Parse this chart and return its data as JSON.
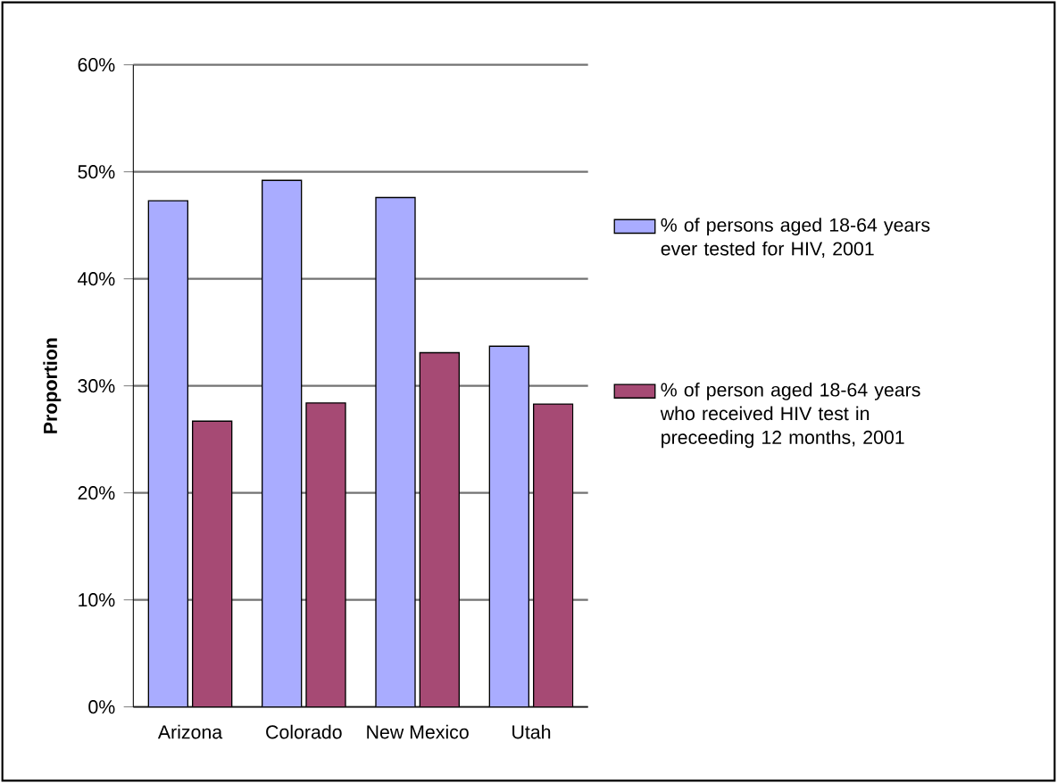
{
  "chart_data": {
    "type": "bar",
    "ylabel": "Proportion",
    "categories": [
      "Arizona",
      "Colorado",
      "New Mexico",
      "Utah"
    ],
    "series": [
      {
        "name": "% of persons aged 18-64 years ever tested for HIV, 2001",
        "color": "#a9acff",
        "values": [
          47.3,
          49.2,
          47.6,
          33.7
        ]
      },
      {
        "name": "% of person aged 18-64 years who received HIV test in preceeding 12 months, 2001",
        "color": "#a64a74",
        "values": [
          26.7,
          28.4,
          33.1,
          28.3
        ]
      }
    ],
    "ylim": [
      0,
      60
    ],
    "yticks": [
      {
        "value": 0,
        "label": "0%"
      },
      {
        "value": 10,
        "label": "10%"
      },
      {
        "value": 20,
        "label": "20%"
      },
      {
        "value": 30,
        "label": "30%"
      },
      {
        "value": 40,
        "label": "40%"
      },
      {
        "value": 50,
        "label": "50%"
      },
      {
        "value": 60,
        "label": "60%"
      }
    ],
    "grid": "y",
    "legend": "right"
  }
}
